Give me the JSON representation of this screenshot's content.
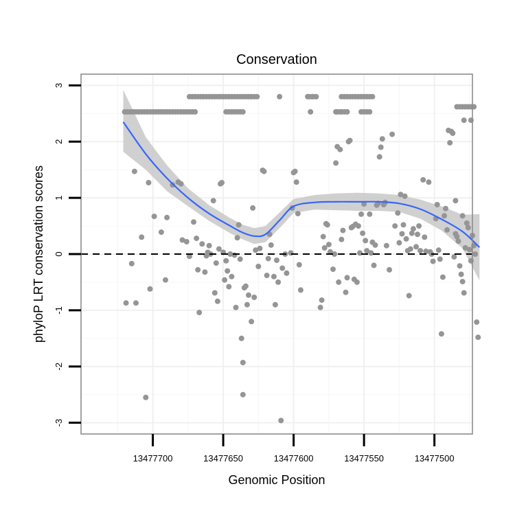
{
  "chart_data": {
    "type": "scatter",
    "title": "Conservation",
    "xlabel": "Genomic Position",
    "ylabel": "phyloP LRT conservation scores",
    "x_reversed": true,
    "xlim": [
      13477473,
      13477751
    ],
    "ylim": [
      -3.2,
      3.2
    ],
    "xticks": [
      13477700,
      13477650,
      13477600,
      13477550,
      13477500
    ],
    "yticks": [
      -3,
      -2,
      -1,
      0,
      1,
      2,
      3
    ],
    "grid": true,
    "reference_line_y": 0,
    "points": [
      [
        13477720,
        2.53
      ],
      [
        13477718,
        2.53
      ],
      [
        13477716,
        2.53
      ],
      [
        13477714,
        2.53
      ],
      [
        13477712,
        2.53
      ],
      [
        13477710,
        2.53
      ],
      [
        13477708,
        2.53
      ],
      [
        13477706,
        2.53
      ],
      [
        13477704,
        2.53
      ],
      [
        13477702,
        2.53
      ],
      [
        13477700,
        2.53
      ],
      [
        13477698,
        2.53
      ],
      [
        13477696,
        2.53
      ],
      [
        13477694,
        2.53
      ],
      [
        13477692,
        2.53
      ],
      [
        13477690,
        2.53
      ],
      [
        13477688,
        2.53
      ],
      [
        13477686,
        2.53
      ],
      [
        13477684,
        2.53
      ],
      [
        13477682,
        2.53
      ],
      [
        13477680,
        2.53
      ],
      [
        13477678,
        2.53
      ],
      [
        13477676,
        2.53
      ],
      [
        13477674,
        2.53
      ],
      [
        13477672,
        2.53
      ],
      [
        13477670,
        2.53
      ],
      [
        13477662,
        2.8
      ],
      [
        13477660,
        2.8
      ],
      [
        13477658,
        2.8
      ],
      [
        13477656,
        2.8
      ],
      [
        13477654,
        2.8
      ],
      [
        13477652,
        2.8
      ],
      [
        13477650,
        2.8
      ],
      [
        13477648,
        2.8
      ],
      [
        13477646,
        2.8
      ],
      [
        13477644,
        2.8
      ],
      [
        13477642,
        2.8
      ],
      [
        13477640,
        2.8
      ],
      [
        13477638,
        2.8
      ],
      [
        13477636,
        2.8
      ],
      [
        13477634,
        2.8
      ],
      [
        13477632,
        2.8
      ],
      [
        13477630,
        2.8
      ],
      [
        13477628,
        2.8
      ],
      [
        13477626,
        2.8
      ],
      [
        13477648,
        2.53
      ],
      [
        13477646,
        2.53
      ],
      [
        13477644,
        2.53
      ],
      [
        13477642,
        2.53
      ],
      [
        13477640,
        2.53
      ],
      [
        13477638,
        2.53
      ],
      [
        13477636,
        2.53
      ],
      [
        13477674,
        2.8
      ],
      [
        13477672,
        2.8
      ],
      [
        13477670,
        2.8
      ],
      [
        13477668,
        2.8
      ],
      [
        13477666,
        2.8
      ],
      [
        13477664,
        2.8
      ],
      [
        13477610,
        2.8
      ],
      [
        13477590,
        2.8
      ],
      [
        13477589,
        2.8
      ],
      [
        13477587,
        2.8
      ],
      [
        13477586,
        2.8
      ],
      [
        13477584,
        2.8
      ],
      [
        13477588,
        2.53
      ],
      [
        13477570,
        2.53
      ],
      [
        13477569,
        2.53
      ],
      [
        13477567,
        2.53
      ],
      [
        13477566,
        2.53
      ],
      [
        13477564,
        2.53
      ],
      [
        13477562,
        2.53
      ],
      [
        13477566,
        2.8
      ],
      [
        13477564,
        2.8
      ],
      [
        13477562,
        2.8
      ],
      [
        13477560,
        2.8
      ],
      [
        13477558,
        2.8
      ],
      [
        13477556,
        2.8
      ],
      [
        13477554,
        2.8
      ],
      [
        13477552,
        2.8
      ],
      [
        13477550,
        2.8
      ],
      [
        13477548,
        2.8
      ],
      [
        13477546,
        2.8
      ],
      [
        13477544,
        2.8
      ],
      [
        13477552,
        2.53
      ],
      [
        13477550,
        2.53
      ],
      [
        13477548,
        2.53
      ],
      [
        13477546,
        2.53
      ],
      [
        13477484,
        2.62
      ],
      [
        13477482,
        2.62
      ],
      [
        13477480,
        2.62
      ],
      [
        13477478,
        2.62
      ],
      [
        13477476,
        2.62
      ],
      [
        13477474,
        2.62
      ],
      [
        13477472,
        2.62
      ],
      [
        13477479,
        2.38
      ],
      [
        13477474,
        2.38
      ],
      [
        13477719,
        -0.87
      ],
      [
        13477715,
        -0.17
      ],
      [
        13477713,
        1.47
      ],
      [
        13477712,
        -0.87
      ],
      [
        13477708,
        0.3
      ],
      [
        13477705,
        -2.55
      ],
      [
        13477703,
        1.27
      ],
      [
        13477702,
        -0.62
      ],
      [
        13477699,
        0.67
      ],
      [
        13477694,
        0.39
      ],
      [
        13477691,
        -0.46
      ],
      [
        13477690,
        0.65
      ],
      [
        13477686,
        1.23
      ],
      [
        13477682,
        1.28
      ],
      [
        13477680,
        1.25
      ],
      [
        13477679,
        0.25
      ],
      [
        13477676,
        0.22
      ],
      [
        13477674,
        -0.04
      ],
      [
        13477671,
        0.57
      ],
      [
        13477669,
        0.28
      ],
      [
        13477668,
        -0.28
      ],
      [
        13477667,
        -1.04
      ],
      [
        13477665,
        0.18
      ],
      [
        13477663,
        -0.32
      ],
      [
        13477662,
        -0.03
      ],
      [
        13477661,
        0.03
      ],
      [
        13477660,
        0.15
      ],
      [
        13477659,
        0.0
      ],
      [
        13477657,
        0.95
      ],
      [
        13477656,
        -0.69
      ],
      [
        13477655,
        -0.16
      ],
      [
        13477654,
        -0.84
      ],
      [
        13477653,
        0.09
      ],
      [
        13477652,
        1.25
      ],
      [
        13477651,
        1.27
      ],
      [
        13477650,
        0.03
      ],
      [
        13477649,
        -0.46
      ],
      [
        13477648,
        -0.12
      ],
      [
        13477647,
        -0.3
      ],
      [
        13477646,
        -0.58
      ],
      [
        13477645,
        0.0
      ],
      [
        13477644,
        -0.4
      ],
      [
        13477642,
        -0.02
      ],
      [
        13477641,
        -0.95
      ],
      [
        13477640,
        0.29
      ],
      [
        13477639,
        0.52
      ],
      [
        13477638,
        -0.09
      ],
      [
        13477637,
        -1.5
      ],
      [
        13477636,
        -1.93
      ],
      [
        13477636,
        -2.5
      ],
      [
        13477635,
        -0.6
      ],
      [
        13477634,
        -0.57
      ],
      [
        13477633,
        -0.9
      ],
      [
        13477632,
        -0.73
      ],
      [
        13477630,
        -1.2
      ],
      [
        13477629,
        0.82
      ],
      [
        13477628,
        -0.77
      ],
      [
        13477627,
        0.07
      ],
      [
        13477625,
        -0.22
      ],
      [
        13477624,
        0.1
      ],
      [
        13477622,
        1.49
      ],
      [
        13477621,
        1.47
      ],
      [
        13477619,
        -0.38
      ],
      [
        13477618,
        -0.08
      ],
      [
        13477617,
        0.35
      ],
      [
        13477616,
        0.16
      ],
      [
        13477614,
        -0.4
      ],
      [
        13477613,
        -0.9
      ],
      [
        13477612,
        -0.11
      ],
      [
        13477611,
        -0.5
      ],
      [
        13477609,
        -2.96
      ],
      [
        13477608,
        -0.25
      ],
      [
        13477606,
        0.0
      ],
      [
        13477605,
        -0.34
      ],
      [
        13477602,
        0.02
      ],
      [
        13477601,
        0.82
      ],
      [
        13477600,
        1.45
      ],
      [
        13477599,
        1.47
      ],
      [
        13477598,
        1.28
      ],
      [
        13477597,
        0.72
      ],
      [
        13477596,
        -0.19
      ],
      [
        13477595,
        -0.64
      ],
      [
        13477581,
        -0.95
      ],
      [
        13477580,
        -0.82
      ],
      [
        13477579,
        0.31
      ],
      [
        13477578,
        0.11
      ],
      [
        13477577,
        0.54
      ],
      [
        13477576,
        0.52
      ],
      [
        13477575,
        0.17
      ],
      [
        13477574,
        0.04
      ],
      [
        13477572,
        -0.27
      ],
      [
        13477571,
        0.0
      ],
      [
        13477570,
        1.62
      ],
      [
        13477569,
        1.91
      ],
      [
        13477568,
        -0.5
      ],
      [
        13477567,
        1.86
      ],
      [
        13477566,
        0.26
      ],
      [
        13477565,
        0.42
      ],
      [
        13477563,
        -0.68
      ],
      [
        13477562,
        -0.42
      ],
      [
        13477561,
        2.0
      ],
      [
        13477560,
        2.02
      ],
      [
        13477559,
        0.47
      ],
      [
        13477558,
        0.49
      ],
      [
        13477557,
        -0.45
      ],
      [
        13477556,
        0.53
      ],
      [
        13477555,
        -0.5
      ],
      [
        13477554,
        0.5
      ],
      [
        13477553,
        0.02
      ],
      [
        13477552,
        0.71
      ],
      [
        13477551,
        0.37
      ],
      [
        13477550,
        0.89
      ],
      [
        13477549,
        0.24
      ],
      [
        13477548,
        0.06
      ],
      [
        13477546,
        0.71
      ],
      [
        13477545,
        0.02
      ],
      [
        13477544,
        0.21
      ],
      [
        13477543,
        -0.2
      ],
      [
        13477542,
        0.16
      ],
      [
        13477541,
        0.87
      ],
      [
        13477540,
        0.9
      ],
      [
        13477539,
        1.73
      ],
      [
        13477538,
        1.9
      ],
      [
        13477537,
        2.05
      ],
      [
        13477536,
        0.88
      ],
      [
        13477535,
        0.92
      ],
      [
        13477534,
        0.15
      ],
      [
        13477532,
        -0.28
      ],
      [
        13477530,
        2.13
      ],
      [
        13477528,
        0.5
      ],
      [
        13477526,
        0.73
      ],
      [
        13477525,
        0.2
      ],
      [
        13477524,
        1.06
      ],
      [
        13477523,
        0.36
      ],
      [
        13477522,
        0.52
      ],
      [
        13477521,
        1.03
      ],
      [
        13477520,
        0.27
      ],
      [
        13477519,
        0.06
      ],
      [
        13477518,
        -0.74
      ],
      [
        13477517,
        0.09
      ],
      [
        13477516,
        0.37
      ],
      [
        13477515,
        0.45
      ],
      [
        13477513,
        0.13
      ],
      [
        13477512,
        0.35
      ],
      [
        13477511,
        0.5
      ],
      [
        13477510,
        0.06
      ],
      [
        13477508,
        1.32
      ],
      [
        13477507,
        0.3
      ],
      [
        13477506,
        0.05
      ],
      [
        13477504,
        1.28
      ],
      [
        13477503,
        0.04
      ],
      [
        13477502,
        0.0
      ],
      [
        13477501,
        -0.13
      ],
      [
        13477499,
        0.63
      ],
      [
        13477498,
        0.88
      ],
      [
        13477497,
        0.07
      ],
      [
        13477496,
        -0.09
      ],
      [
        13477495,
        -1.42
      ],
      [
        13477494,
        -0.41
      ],
      [
        13477493,
        0.68
      ],
      [
        13477492,
        0.81
      ],
      [
        13477491,
        0.43
      ],
      [
        13477490,
        2.2
      ],
      [
        13477489,
        1.98
      ],
      [
        13477488,
        2.18
      ],
      [
        13477487,
        2.15
      ],
      [
        13477486,
        -0.05
      ],
      [
        13477485,
        0.36
      ],
      [
        13477484,
        0.31
      ],
      [
        13477483,
        0.23
      ],
      [
        13477482,
        -0.21
      ],
      [
        13477481,
        -0.36
      ],
      [
        13477480,
        -0.49
      ],
      [
        13477479,
        -0.69
      ],
      [
        13477478,
        0.11
      ],
      [
        13477477,
        0.55
      ],
      [
        13477476,
        0.47
      ],
      [
        13477475,
        0.08
      ],
      [
        13477474,
        -0.12
      ],
      [
        13477473,
        0.33
      ],
      [
        13477472,
        0.15
      ],
      [
        13477471,
        0.0
      ],
      [
        13477470,
        -1.21
      ],
      [
        13477469,
        -1.48
      ],
      [
        13477485,
        0.95
      ],
      [
        13477480,
        0.68
      ]
    ],
    "smooth_fit": {
      "x": [
        13477721,
        13477705,
        13477690,
        13477675,
        13477660,
        13477645,
        13477636,
        13477628,
        13477620,
        13477610,
        13477600,
        13477585,
        13477570,
        13477555,
        13477540,
        13477525,
        13477510,
        13477495,
        13477480,
        13477468
      ],
      "y": [
        2.35,
        1.78,
        1.35,
        1.0,
        0.72,
        0.5,
        0.38,
        0.32,
        0.35,
        0.6,
        0.85,
        0.92,
        0.93,
        0.93,
        0.93,
        0.9,
        0.8,
        0.62,
        0.4,
        0.12
      ],
      "lower": [
        1.82,
        1.5,
        1.12,
        0.85,
        0.59,
        0.37,
        0.26,
        0.18,
        0.21,
        0.46,
        0.73,
        0.79,
        0.78,
        0.77,
        0.77,
        0.75,
        0.63,
        0.42,
        0.1,
        -0.47
      ],
      "upper": [
        2.92,
        2.08,
        1.58,
        1.17,
        0.87,
        0.64,
        0.52,
        0.46,
        0.5,
        0.74,
        0.98,
        1.05,
        1.08,
        1.09,
        1.08,
        1.05,
        0.97,
        0.85,
        0.7,
        0.71
      ]
    }
  }
}
